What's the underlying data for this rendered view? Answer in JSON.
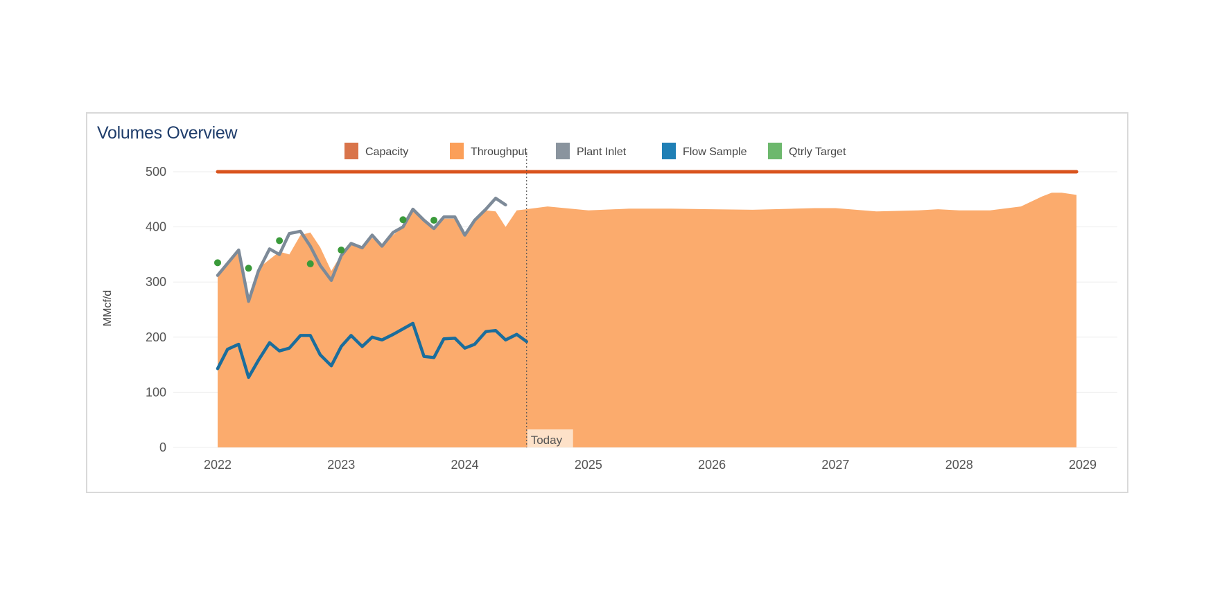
{
  "chart_data": {
    "type": "area",
    "title": "Volumes Overview",
    "ylabel": "MMcf/d",
    "xlabel": "",
    "ylim": [
      0,
      500
    ],
    "xlim": [
      2022,
      2029
    ],
    "yticks": [
      0,
      100,
      200,
      300,
      400,
      500
    ],
    "xticks": [
      "2022",
      "2023",
      "2024",
      "2025",
      "2026",
      "2027",
      "2028",
      "2029"
    ],
    "legend_position": "top",
    "grid": true,
    "today_marker": {
      "x": 2024.5,
      "label": "Today"
    },
    "series": [
      {
        "name": "Capacity",
        "kind": "line",
        "color": "#d9541e",
        "x": [
          2022.0,
          2028.95
        ],
        "y": [
          500,
          500
        ]
      },
      {
        "name": "Throughput",
        "kind": "area",
        "color": "#fbab6d",
        "x": [
          2022.0,
          2022.17,
          2022.25,
          2022.33,
          2022.5,
          2022.58,
          2022.67,
          2022.75,
          2022.83,
          2022.92,
          2023.0,
          2023.08,
          2023.17,
          2023.25,
          2023.33,
          2023.42,
          2023.5,
          2023.58,
          2023.67,
          2023.75,
          2023.83,
          2023.92,
          2024.0,
          2024.08,
          2024.17,
          2024.25,
          2024.33,
          2024.42,
          2024.5,
          2024.67,
          2025.0,
          2025.33,
          2025.67,
          2026.0,
          2026.33,
          2026.67,
          2026.83,
          2027.0,
          2027.33,
          2027.67,
          2027.83,
          2028.0,
          2028.25,
          2028.5,
          2028.67,
          2028.75,
          2028.83,
          2028.95
        ],
        "y": [
          310,
          355,
          265,
          325,
          355,
          350,
          385,
          390,
          363,
          320,
          350,
          370,
          360,
          380,
          365,
          385,
          400,
          428,
          410,
          398,
          415,
          415,
          385,
          410,
          430,
          428,
          400,
          430,
          432,
          437,
          430,
          433,
          433,
          432,
          431,
          433,
          434,
          434,
          428,
          430,
          432,
          430,
          430,
          437,
          455,
          462,
          462,
          458
        ]
      },
      {
        "name": "Plant Inlet",
        "kind": "line",
        "color": "#7d8a98",
        "x": [
          2022.0,
          2022.17,
          2022.25,
          2022.33,
          2022.42,
          2022.5,
          2022.58,
          2022.67,
          2022.75,
          2022.83,
          2022.92,
          2023.0,
          2023.08,
          2023.17,
          2023.25,
          2023.33,
          2023.42,
          2023.5,
          2023.58,
          2023.67,
          2023.75,
          2023.83,
          2023.92,
          2024.0,
          2024.08,
          2024.17,
          2024.25,
          2024.33
        ],
        "y": [
          312,
          358,
          265,
          320,
          360,
          350,
          388,
          392,
          365,
          330,
          303,
          348,
          370,
          362,
          385,
          365,
          390,
          400,
          432,
          412,
          397,
          418,
          418,
          385,
          412,
          432,
          452,
          440
        ]
      },
      {
        "name": "Flow Sample",
        "kind": "line",
        "color": "#1a6d9c",
        "x": [
          2022.0,
          2022.08,
          2022.17,
          2022.25,
          2022.33,
          2022.42,
          2022.5,
          2022.58,
          2022.67,
          2022.75,
          2022.83,
          2022.92,
          2023.0,
          2023.08,
          2023.17,
          2023.25,
          2023.33,
          2023.42,
          2023.5,
          2023.58,
          2023.67,
          2023.75,
          2023.83,
          2023.92,
          2024.0,
          2024.08,
          2024.17,
          2024.25,
          2024.33,
          2024.42,
          2024.5
        ],
        "y": [
          143,
          178,
          187,
          127,
          158,
          190,
          175,
          180,
          203,
          203,
          168,
          148,
          183,
          203,
          183,
          200,
          195,
          205,
          215,
          225,
          165,
          163,
          197,
          198,
          180,
          187,
          210,
          212,
          195,
          205,
          192
        ]
      },
      {
        "name": "Qtrly Target",
        "kind": "scatter",
        "color": "#3a9a3a",
        "x": [
          2022.0,
          2022.25,
          2022.5,
          2022.75,
          2023.0,
          2023.5,
          2023.75
        ],
        "y": [
          335,
          325,
          375,
          333,
          358,
          413,
          412
        ]
      }
    ]
  }
}
